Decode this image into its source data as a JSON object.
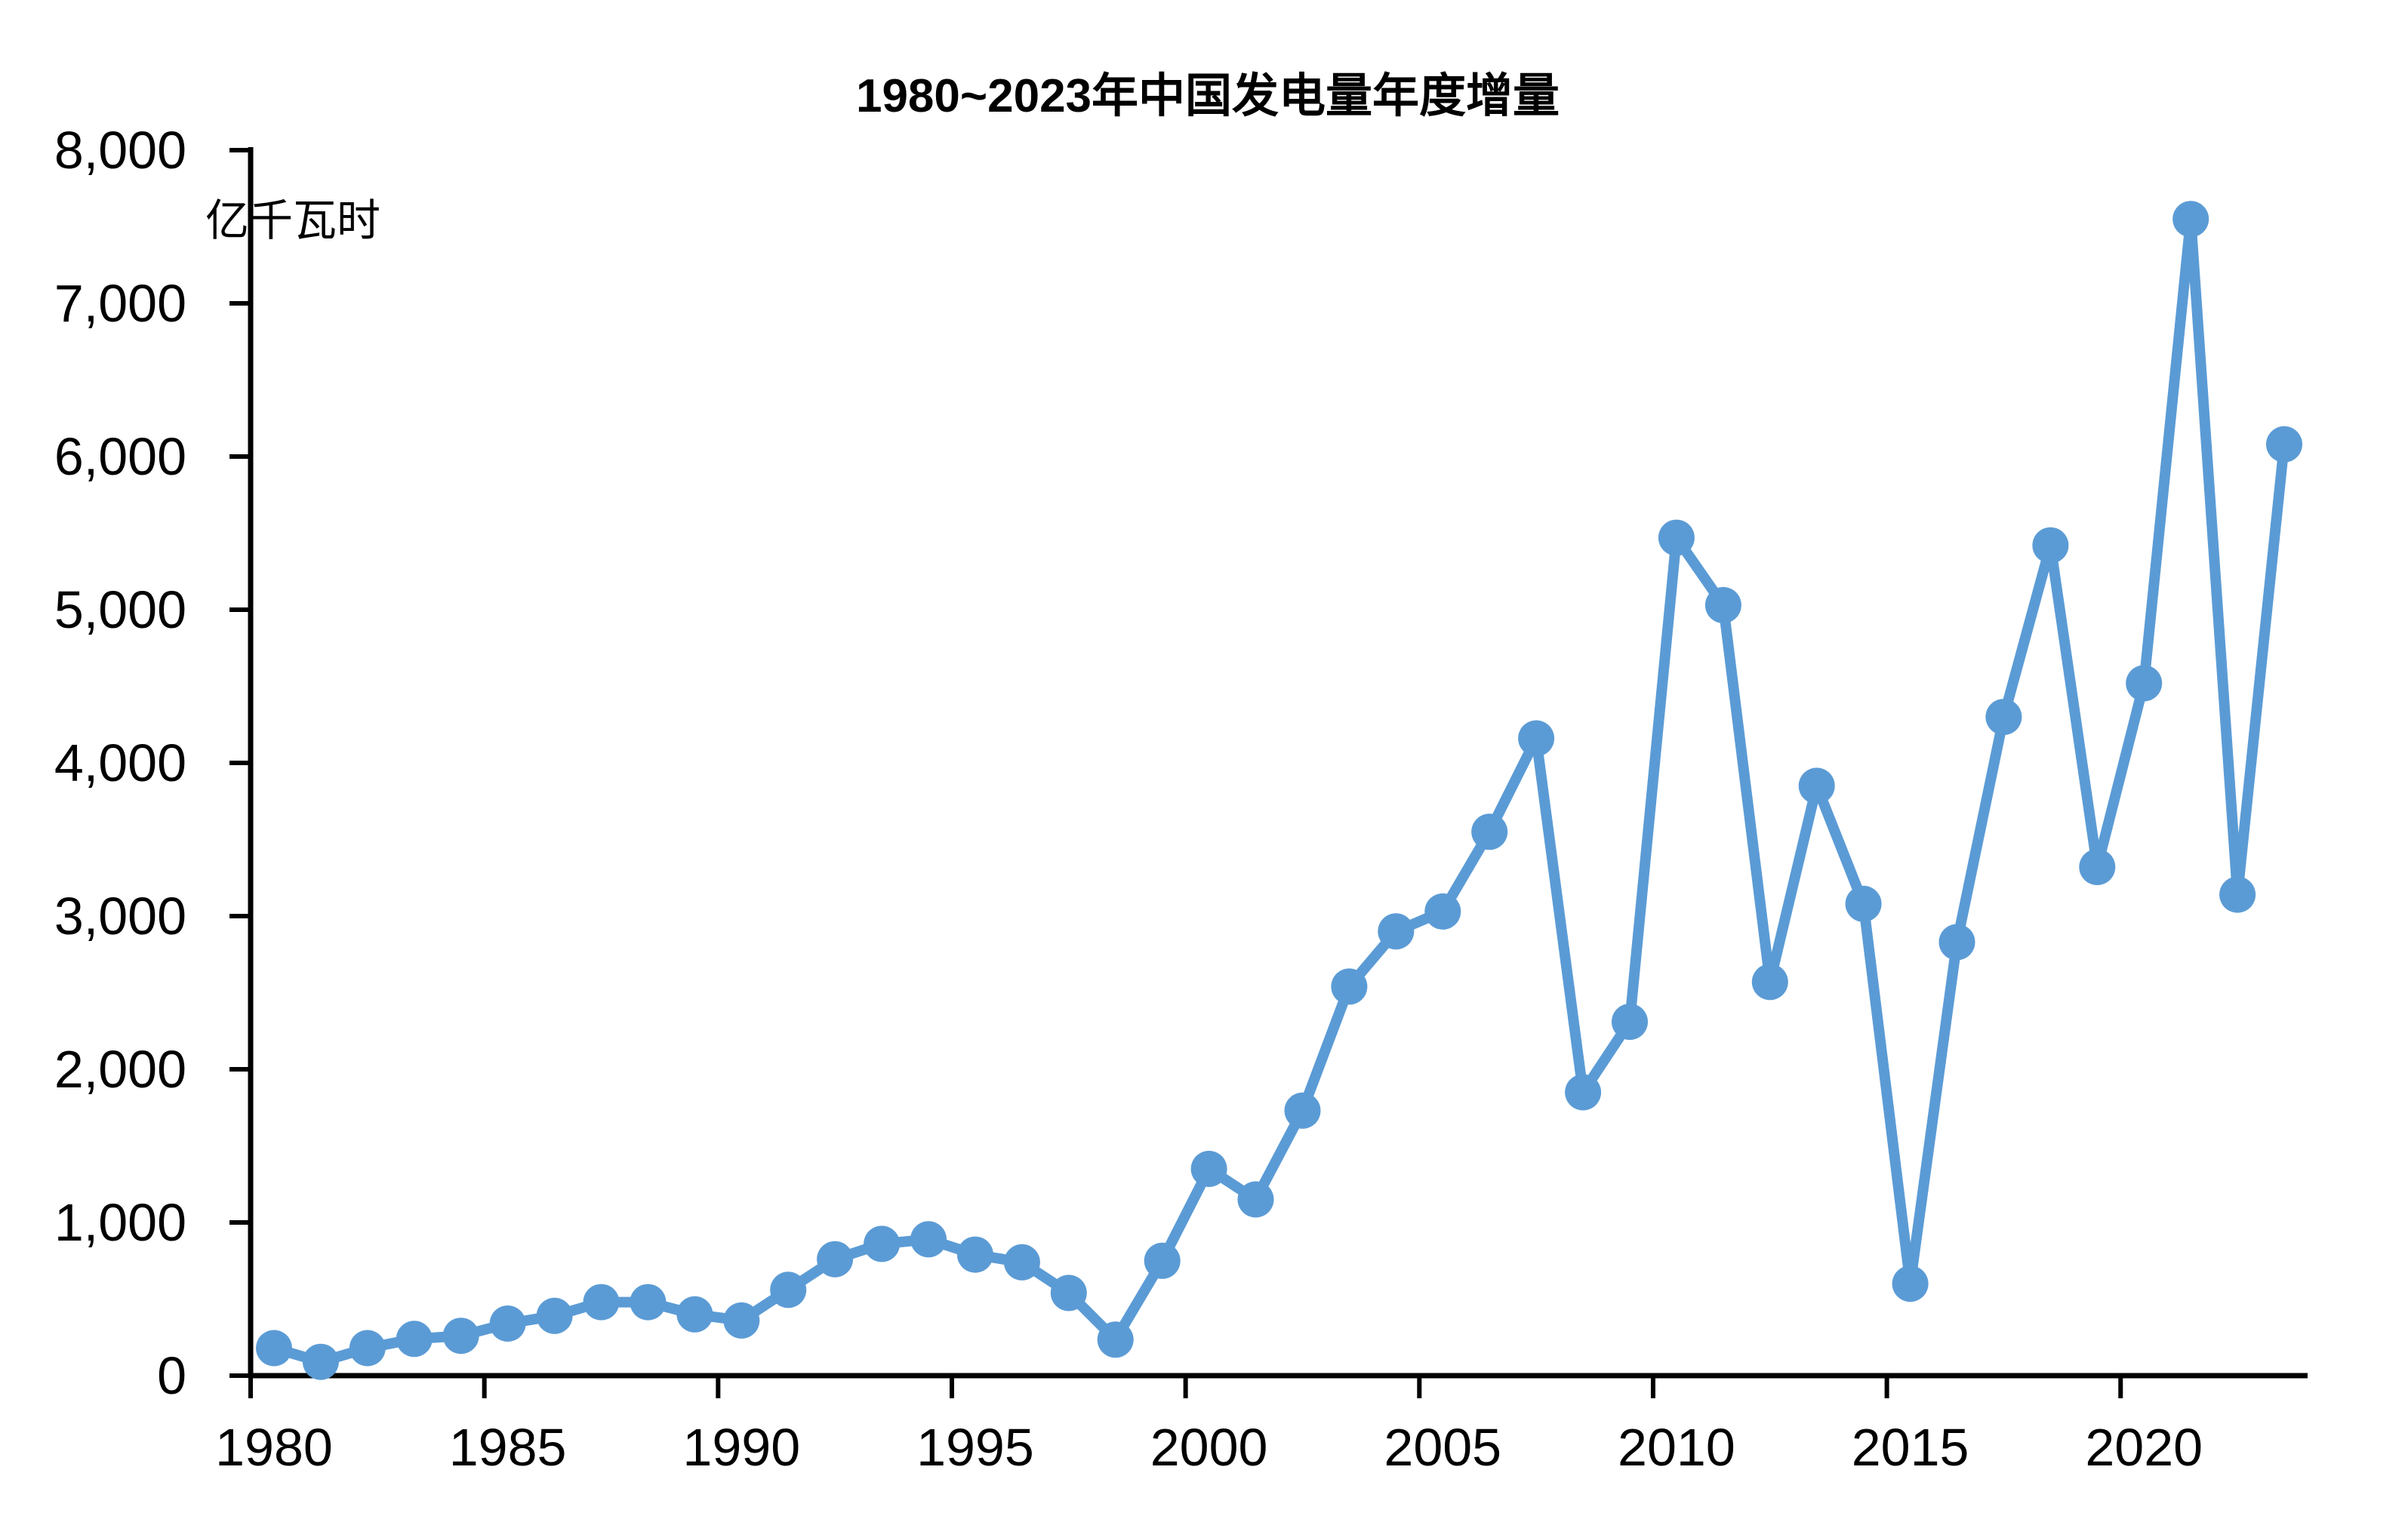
{
  "chart": {
    "title": "1980~2023年中国发电量年度增量",
    "unit": "亿千瓦时"
  },
  "chart_data": {
    "type": "line",
    "title": "1980~2023年中国发电量年度增量",
    "unit_label": "亿千瓦时",
    "series_name": "发电量年度增量",
    "x": [
      1980,
      1981,
      1982,
      1983,
      1984,
      1985,
      1986,
      1987,
      1988,
      1989,
      1990,
      1991,
      1992,
      1993,
      1994,
      1995,
      1996,
      1997,
      1998,
      1999,
      2000,
      2001,
      2002,
      2003,
      2004,
      2005,
      2006,
      2007,
      2008,
      2009,
      2010,
      2011,
      2012,
      2013,
      2014,
      2015,
      2016,
      2017,
      2018,
      2019,
      2020,
      2021,
      2022,
      2023
    ],
    "values": [
      180,
      90,
      180,
      240,
      260,
      340,
      390,
      480,
      480,
      400,
      360,
      560,
      760,
      860,
      890,
      790,
      740,
      540,
      235,
      750,
      1350,
      1150,
      1730,
      2540,
      2900,
      3030,
      3550,
      4160,
      1850,
      2310,
      5470,
      5030,
      2570,
      3850,
      3080,
      600,
      2830,
      4300,
      5420,
      3320,
      4520,
      7550,
      3140,
      6080
    ],
    "x_tick_labels": [
      "1980",
      "1985",
      "1990",
      "1995",
      "2000",
      "2005",
      "2010",
      "2015",
      "2020"
    ],
    "y_tick_labels": [
      "0",
      "1,000",
      "2,000",
      "3,000",
      "4,000",
      "5,000",
      "6,000",
      "7,000",
      "8,000"
    ],
    "xlabel": "",
    "ylabel": "亿千瓦时",
    "ylim": [
      0,
      8000
    ],
    "y_major": 1000,
    "x_tick_step_years": 5,
    "grid": "off",
    "legend": "none",
    "line_color": "#5b9bd5",
    "marker": "circle",
    "axis_color": "#000000",
    "background_color": "#ffffff"
  }
}
